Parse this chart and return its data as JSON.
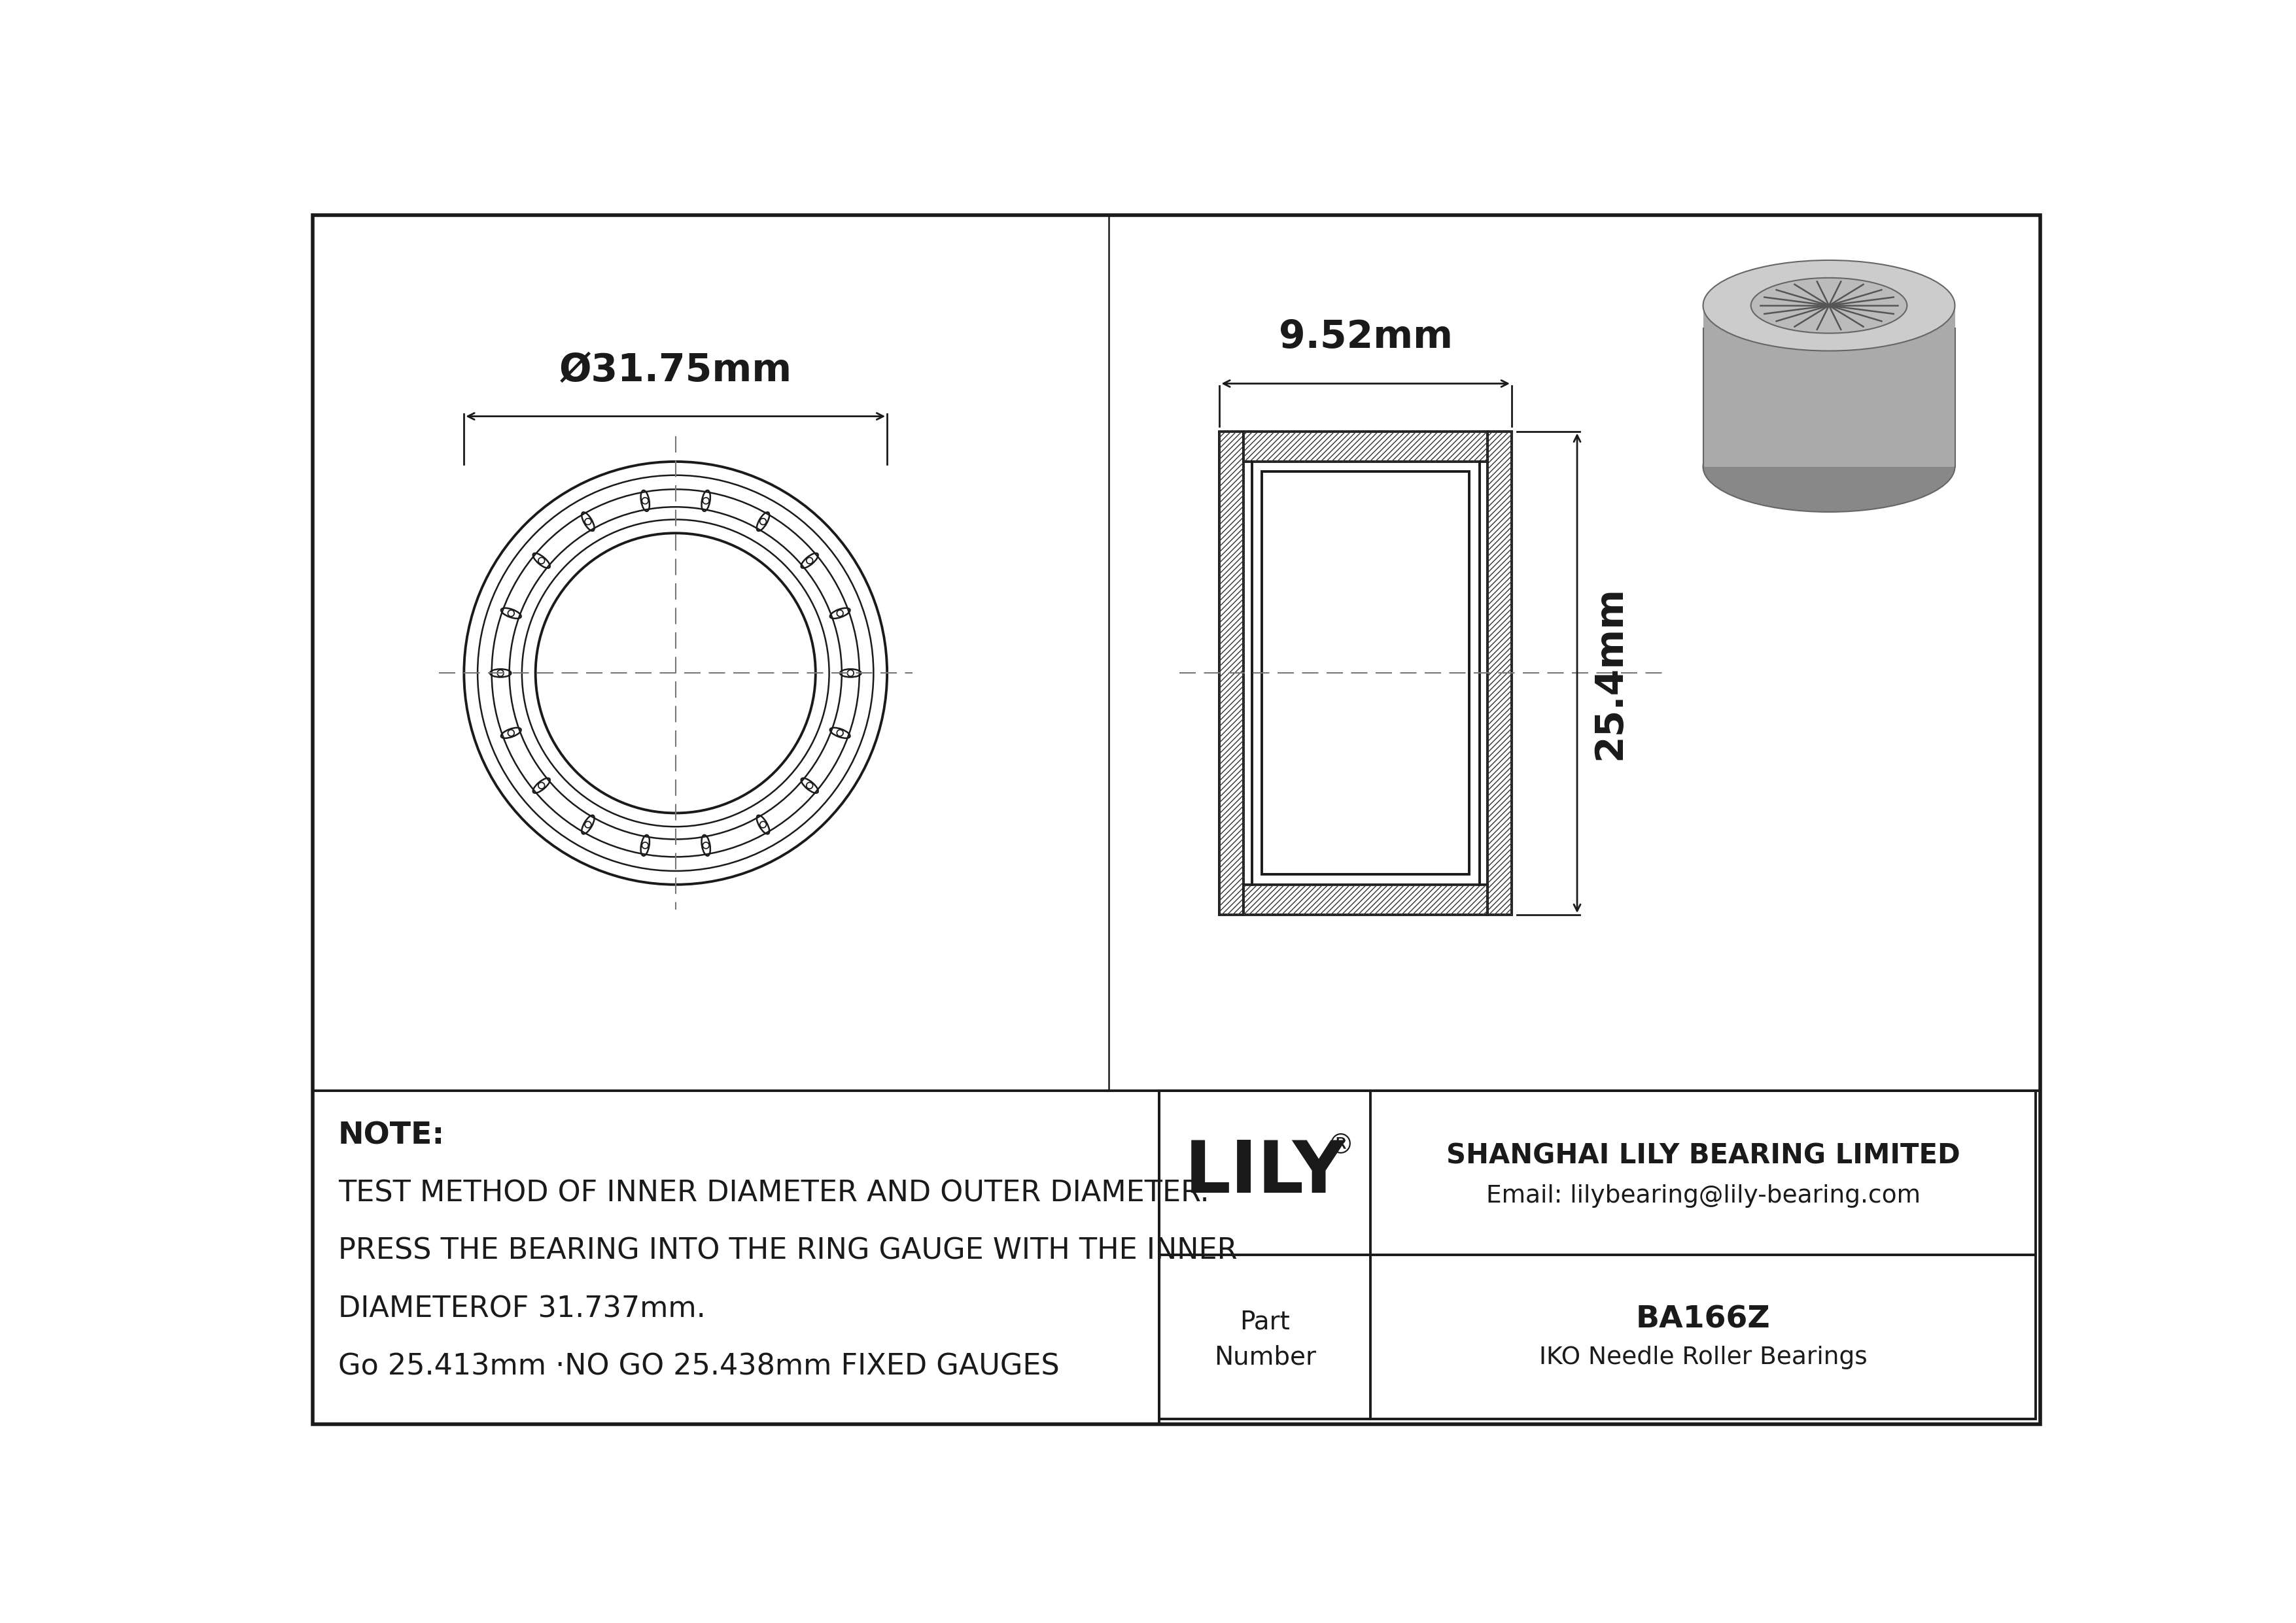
{
  "bg_color": "#ffffff",
  "line_color": "#1a1a1a",
  "outer_diameter_label": "Ø31.75mm",
  "width_label": "9.52mm",
  "height_label": "25.4mm",
  "note_line1": "NOTE:",
  "note_line2": "TEST METHOD OF INNER DIAMETER AND OUTER DIAMETER.",
  "note_line3": "PRESS THE BEARING INTO THE RING GAUGE WITH THE INNER",
  "note_line4": "DIAMETEROF 31.737mm.",
  "note_line5": "Go 25.413mm ·NO GO 25.438mm FIXED GAUGES",
  "company_name": "SHANGHAI LILY BEARING LIMITED",
  "company_email": "Email: lilybearing@lily-bearing.com",
  "part_number": "BA166Z",
  "bearing_type": "IKO Needle Roller Bearings",
  "brand": "LILY",
  "brand_reg": "®",
  "gray_3d": "#aaaaaa",
  "dark_gray_3d": "#888888",
  "light_gray_3d": "#cccccc",
  "mid_gray_3d": "#999999"
}
